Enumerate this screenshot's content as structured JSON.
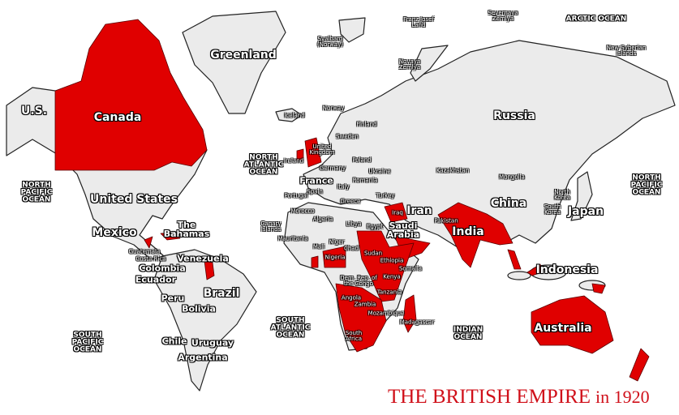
{
  "title": {
    "main": "THE BRITISH EMPIRE",
    "year": "in 1920"
  },
  "colors": {
    "british_empire": "#e00000",
    "other_land": "#ebebeb",
    "title": "#d0101a"
  },
  "labels": [
    {
      "id": "greenland",
      "text": "Greenland",
      "kind": "large"
    },
    {
      "id": "canada",
      "text": "Canada",
      "kind": "large"
    },
    {
      "id": "us-alaska",
      "text": "U.S.",
      "kind": "large"
    },
    {
      "id": "united-states",
      "text": "United States",
      "kind": "large"
    },
    {
      "id": "mexico",
      "text": "Mexico",
      "kind": "large"
    },
    {
      "id": "bahamas",
      "text": "The\nBahamas",
      "kind": "medium"
    },
    {
      "id": "guatemala",
      "text": "Guatemala",
      "kind": "small"
    },
    {
      "id": "costa-rica",
      "text": "Costa Rica",
      "kind": "small"
    },
    {
      "id": "venezuela",
      "text": "Venezuela",
      "kind": "medium"
    },
    {
      "id": "colombia",
      "text": "Colombia",
      "kind": "medium"
    },
    {
      "id": "ecuador",
      "text": "Ecuador",
      "kind": "medium"
    },
    {
      "id": "peru",
      "text": "Peru",
      "kind": "medium"
    },
    {
      "id": "bolivia",
      "text": "Bolivia",
      "kind": "medium"
    },
    {
      "id": "brazil",
      "text": "Brazil",
      "kind": "large"
    },
    {
      "id": "chile",
      "text": "Chile",
      "kind": "medium"
    },
    {
      "id": "uruguay",
      "text": "Uruguay",
      "kind": "medium"
    },
    {
      "id": "argentina",
      "text": "Argentina",
      "kind": "medium"
    },
    {
      "id": "n-pacific-w",
      "text": "NORTH\nPACIFIC\nOCEAN",
      "kind": "ocean"
    },
    {
      "id": "s-pacific",
      "text": "SOUTH\nPACIFIC\nOCEAN",
      "kind": "ocean"
    },
    {
      "id": "n-atlantic",
      "text": "NORTH\nATLANTIC\nOCEAN",
      "kind": "ocean"
    },
    {
      "id": "s-atlantic",
      "text": "SOUTH\nATLANTIC\nOCEAN",
      "kind": "ocean"
    },
    {
      "id": "indian-ocean",
      "text": "INDIAN\nOCEAN",
      "kind": "ocean"
    },
    {
      "id": "n-pacific-e",
      "text": "NORTH\nPACIFIC\nOCEAN",
      "kind": "ocean"
    },
    {
      "id": "arctic",
      "text": "ARCTIC OCEAN",
      "kind": "ocean"
    },
    {
      "id": "svalbard",
      "text": "Svalbard\n(Norway)",
      "kind": "small"
    },
    {
      "id": "franz-josef",
      "text": "Franz Josef\nLand",
      "kind": "small"
    },
    {
      "id": "severnaya",
      "text": "Severnaya\nZemlya",
      "kind": "small"
    },
    {
      "id": "new-syberian",
      "text": "New Syberian\nIslands",
      "kind": "small"
    },
    {
      "id": "novaya",
      "text": "Novaya\nZemlya",
      "kind": "small"
    },
    {
      "id": "iceland",
      "text": "Iceland",
      "kind": "small"
    },
    {
      "id": "norway",
      "text": "Norway",
      "kind": "small"
    },
    {
      "id": "finland",
      "text": "Finland",
      "kind": "small"
    },
    {
      "id": "sweden",
      "text": "Sweden",
      "kind": "small"
    },
    {
      "id": "uk",
      "text": "United\nKingdom",
      "kind": "small"
    },
    {
      "id": "ireland",
      "text": "Ireland",
      "kind": "small"
    },
    {
      "id": "germany",
      "text": "Germany",
      "kind": "small"
    },
    {
      "id": "poland",
      "text": "Poland",
      "kind": "small"
    },
    {
      "id": "ukraine",
      "text": "Ukraine",
      "kind": "small"
    },
    {
      "id": "france",
      "text": "France",
      "kind": "medium"
    },
    {
      "id": "romania",
      "text": "Romania",
      "kind": "small"
    },
    {
      "id": "italy",
      "text": "Italy",
      "kind": "small"
    },
    {
      "id": "spain",
      "text": "Spain",
      "kind": "small"
    },
    {
      "id": "portugal",
      "text": "Portugal",
      "kind": "small"
    },
    {
      "id": "turkey",
      "text": "Turkey",
      "kind": "small"
    },
    {
      "id": "greece",
      "text": "Greece",
      "kind": "small"
    },
    {
      "id": "morocco",
      "text": "Morocco",
      "kind": "small"
    },
    {
      "id": "algeria",
      "text": "Algeria",
      "kind": "small"
    },
    {
      "id": "libya",
      "text": "Libya",
      "kind": "small"
    },
    {
      "id": "egypt",
      "text": "Egypt",
      "kind": "small"
    },
    {
      "id": "iraq",
      "text": "Iraq",
      "kind": "small"
    },
    {
      "id": "iran",
      "text": "Iran",
      "kind": "large"
    },
    {
      "id": "saudi",
      "text": "Saudi\nArabia",
      "kind": "medium"
    },
    {
      "id": "canary",
      "text": "Canary\nIslands",
      "kind": "small"
    },
    {
      "id": "mauritania",
      "text": "Mauritania",
      "kind": "small"
    },
    {
      "id": "mali",
      "text": "Mali",
      "kind": "small"
    },
    {
      "id": "niger",
      "text": "Niger",
      "kind": "small"
    },
    {
      "id": "chad",
      "text": "Chad",
      "kind": "small"
    },
    {
      "id": "sudan",
      "text": "Sudan",
      "kind": "small"
    },
    {
      "id": "nigeria",
      "text": "Nigeria",
      "kind": "small"
    },
    {
      "id": "ethiopia",
      "text": "Ethiopia",
      "kind": "small"
    },
    {
      "id": "somalia",
      "text": "Somalia",
      "kind": "small"
    },
    {
      "id": "kenya",
      "text": "Kenya",
      "kind": "small"
    },
    {
      "id": "drc",
      "text": "Dem. Rep. of\nthe Congo",
      "kind": "small"
    },
    {
      "id": "tanzania",
      "text": "Tanzania",
      "kind": "small"
    },
    {
      "id": "angola",
      "text": "Angola",
      "kind": "small"
    },
    {
      "id": "zambia",
      "text": "Zambia",
      "kind": "small"
    },
    {
      "id": "mozambique",
      "text": "Mozambique",
      "kind": "small"
    },
    {
      "id": "madagascar",
      "text": "Madagascar",
      "kind": "small"
    },
    {
      "id": "south-africa",
      "text": "South\nAfrica",
      "kind": "small"
    },
    {
      "id": "kazakhstan",
      "text": "Kazakhstan",
      "kind": "small"
    },
    {
      "id": "mongolia",
      "text": "Mongolia",
      "kind": "small"
    },
    {
      "id": "russia",
      "text": "Russia",
      "kind": "large"
    },
    {
      "id": "china",
      "text": "China",
      "kind": "large"
    },
    {
      "id": "north-korea",
      "text": "North\nKorea",
      "kind": "small"
    },
    {
      "id": "south-korea",
      "text": "South\nKorea",
      "kind": "small"
    },
    {
      "id": "japan",
      "text": "Japan",
      "kind": "large"
    },
    {
      "id": "pakistan",
      "text": "Pakistan",
      "kind": "small"
    },
    {
      "id": "india",
      "text": "India",
      "kind": "large"
    },
    {
      "id": "indonesia",
      "text": "Indonesia",
      "kind": "large"
    },
    {
      "id": "australia",
      "text": "Australia",
      "kind": "large"
    }
  ]
}
